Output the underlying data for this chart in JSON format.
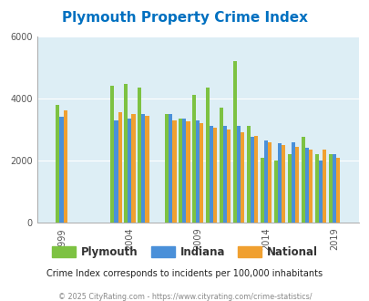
{
  "title": "Plymouth Property Crime Index",
  "subtitle": "Crime Index corresponds to incidents per 100,000 inhabitants",
  "footer": "© 2025 CityRating.com - https://www.cityrating.com/crime-statistics/",
  "years": [
    1999,
    2003,
    2004,
    2005,
    2007,
    2008,
    2009,
    2010,
    2011,
    2012,
    2013,
    2014,
    2015,
    2016,
    2017,
    2018,
    2019
  ],
  "plymouth": [
    3800,
    4400,
    4450,
    4350,
    3500,
    3350,
    4100,
    4350,
    3700,
    5200,
    3100,
    2100,
    2000,
    2200,
    2750,
    2200,
    2200
  ],
  "indiana": [
    3400,
    3300,
    3350,
    3500,
    3500,
    3350,
    3300,
    3100,
    3100,
    3100,
    2750,
    2650,
    2550,
    2600,
    2400,
    2000,
    2200
  ],
  "national": [
    3600,
    3550,
    3500,
    3450,
    3300,
    3250,
    3200,
    3050,
    3000,
    2900,
    2800,
    2600,
    2500,
    2450,
    2350,
    2350,
    2100
  ],
  "color_plymouth": "#7dc242",
  "color_indiana": "#4a90d9",
  "color_national": "#f0a030",
  "bg_color": "#ddeef5",
  "ylim": [
    0,
    6000
  ],
  "yticks": [
    0,
    2000,
    4000,
    6000
  ],
  "title_color": "#0070c0",
  "subtitle_color": "#222222",
  "footer_color": "#888888",
  "bar_width": 0.28,
  "xlim_left": 1997.2,
  "xlim_right": 2020.8,
  "xtick_positions": [
    1999,
    2004,
    2009,
    2014,
    2019
  ],
  "xtick_labels": [
    "1999",
    "2004",
    "2009",
    "2014",
    "2019"
  ]
}
